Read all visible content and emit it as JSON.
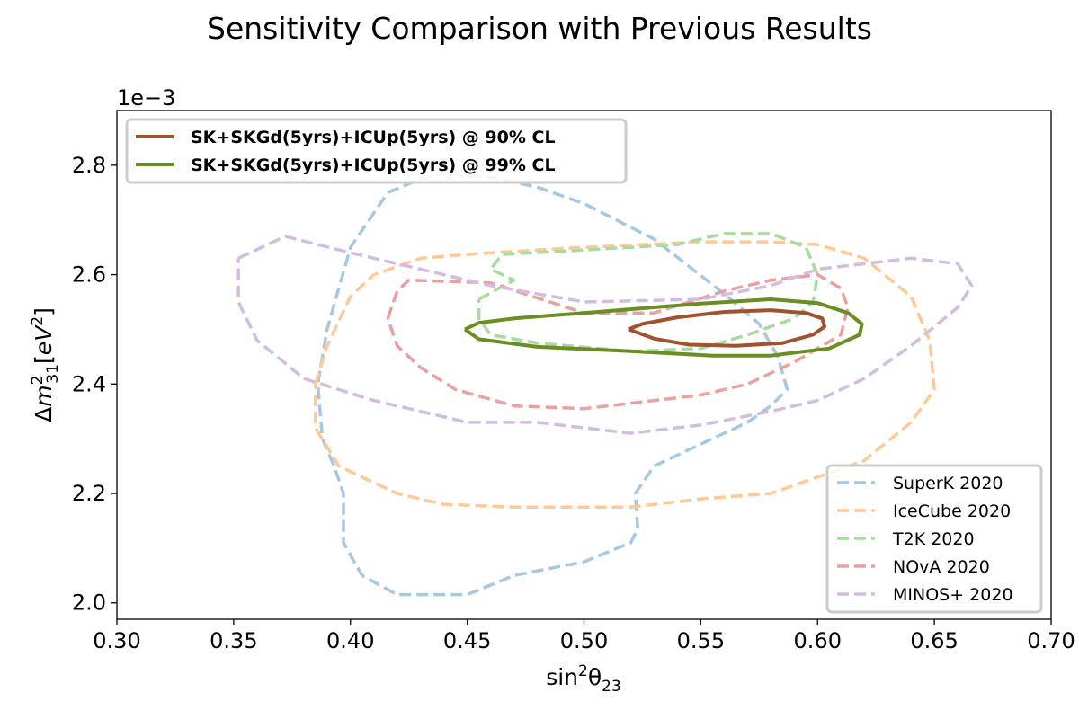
{
  "chart_data": {
    "type": "line",
    "title": "Sensitivity Comparison with Previous Results",
    "xlabel": "sin²θ₂₃",
    "ylabel": "Δm²₃₁[eV²]",
    "y_offset_text": "1e−3",
    "xlim": [
      0.3,
      0.7
    ],
    "ylim": [
      1.97,
      2.9
    ],
    "x_ticks": [
      "0.30",
      "0.35",
      "0.40",
      "0.45",
      "0.50",
      "0.55",
      "0.60",
      "0.65",
      "0.70"
    ],
    "y_ticks": [
      "2.0",
      "2.2",
      "2.4",
      "2.6",
      "2.8"
    ],
    "grid": false,
    "legend_main": "top-left",
    "legend_previous": "bottom-right",
    "series": [
      {
        "name": "SK+SKGd(5yrs)+ICUp(5yrs) @ 90% CL",
        "color": "#a0522d",
        "style": "solid",
        "points": [
          [
            0.519,
            2.5
          ],
          [
            0.525,
            2.51
          ],
          [
            0.54,
            2.522
          ],
          [
            0.56,
            2.532
          ],
          [
            0.58,
            2.535
          ],
          [
            0.595,
            2.53
          ],
          [
            0.602,
            2.52
          ],
          [
            0.603,
            2.505
          ],
          [
            0.598,
            2.49
          ],
          [
            0.585,
            2.475
          ],
          [
            0.565,
            2.47
          ],
          [
            0.545,
            2.472
          ],
          [
            0.53,
            2.483
          ],
          [
            0.519,
            2.5
          ]
        ]
      },
      {
        "name": "SK+SKGd(5yrs)+ICUp(5yrs) @ 99% CL",
        "color": "#6b8e23",
        "style": "solid",
        "points": [
          [
            0.449,
            2.5
          ],
          [
            0.455,
            2.512
          ],
          [
            0.47,
            2.52
          ],
          [
            0.5,
            2.53
          ],
          [
            0.55,
            2.547
          ],
          [
            0.58,
            2.555
          ],
          [
            0.6,
            2.548
          ],
          [
            0.613,
            2.53
          ],
          [
            0.619,
            2.51
          ],
          [
            0.618,
            2.49
          ],
          [
            0.605,
            2.465
          ],
          [
            0.58,
            2.452
          ],
          [
            0.555,
            2.452
          ],
          [
            0.52,
            2.46
          ],
          [
            0.48,
            2.468
          ],
          [
            0.455,
            2.482
          ],
          [
            0.449,
            2.5
          ]
        ]
      },
      {
        "name": "SuperK 2020",
        "color": "#a6c8e0",
        "style": "dashed",
        "points": [
          [
            0.416,
            2.75
          ],
          [
            0.43,
            2.775
          ],
          [
            0.44,
            2.785
          ],
          [
            0.46,
            2.778
          ],
          [
            0.48,
            2.76
          ],
          [
            0.5,
            2.73
          ],
          [
            0.53,
            2.665
          ],
          [
            0.56,
            2.565
          ],
          [
            0.575,
            2.51
          ],
          [
            0.583,
            2.45
          ],
          [
            0.587,
            2.39
          ],
          [
            0.58,
            2.36
          ],
          [
            0.57,
            2.33
          ],
          [
            0.55,
            2.29
          ],
          [
            0.53,
            2.25
          ],
          [
            0.522,
            2.2
          ],
          [
            0.523,
            2.135
          ],
          [
            0.52,
            2.11
          ],
          [
            0.5,
            2.075
          ],
          [
            0.47,
            2.05
          ],
          [
            0.45,
            2.015
          ],
          [
            0.42,
            2.015
          ],
          [
            0.405,
            2.05
          ],
          [
            0.397,
            2.11
          ],
          [
            0.397,
            2.2
          ],
          [
            0.393,
            2.25
          ],
          [
            0.388,
            2.3
          ],
          [
            0.386,
            2.4
          ],
          [
            0.39,
            2.5
          ],
          [
            0.4,
            2.65
          ],
          [
            0.416,
            2.75
          ]
        ]
      },
      {
        "name": "IceCube 2020",
        "color": "#ffc996",
        "style": "dashed",
        "points": [
          [
            0.385,
            2.4
          ],
          [
            0.39,
            2.47
          ],
          [
            0.4,
            2.56
          ],
          [
            0.41,
            2.6
          ],
          [
            0.43,
            2.63
          ],
          [
            0.46,
            2.64
          ],
          [
            0.5,
            2.65
          ],
          [
            0.55,
            2.66
          ],
          [
            0.58,
            2.66
          ],
          [
            0.6,
            2.655
          ],
          [
            0.62,
            2.63
          ],
          [
            0.64,
            2.56
          ],
          [
            0.648,
            2.48
          ],
          [
            0.65,
            2.39
          ],
          [
            0.64,
            2.33
          ],
          [
            0.62,
            2.26
          ],
          [
            0.58,
            2.2
          ],
          [
            0.55,
            2.19
          ],
          [
            0.52,
            2.175
          ],
          [
            0.47,
            2.175
          ],
          [
            0.44,
            2.18
          ],
          [
            0.42,
            2.2
          ],
          [
            0.395,
            2.25
          ],
          [
            0.385,
            2.32
          ],
          [
            0.385,
            2.4
          ]
        ]
      },
      {
        "name": "T2K 2020",
        "color": "#a8dba0",
        "style": "dashed",
        "points": [
          [
            0.455,
            2.555
          ],
          [
            0.47,
            2.59
          ],
          [
            0.46,
            2.61
          ],
          [
            0.465,
            2.637
          ],
          [
            0.5,
            2.645
          ],
          [
            0.54,
            2.655
          ],
          [
            0.56,
            2.675
          ],
          [
            0.58,
            2.675
          ],
          [
            0.595,
            2.65
          ],
          [
            0.6,
            2.6
          ],
          [
            0.598,
            2.55
          ],
          [
            0.59,
            2.52
          ],
          [
            0.57,
            2.49
          ],
          [
            0.55,
            2.465
          ],
          [
            0.52,
            2.46
          ],
          [
            0.48,
            2.475
          ],
          [
            0.46,
            2.49
          ],
          [
            0.455,
            2.52
          ],
          [
            0.455,
            2.555
          ]
        ]
      },
      {
        "name": "NOvA 2020",
        "color": "#eba0a0",
        "style": "dashed",
        "points": [
          [
            0.416,
            2.52
          ],
          [
            0.42,
            2.57
          ],
          [
            0.425,
            2.59
          ],
          [
            0.46,
            2.585
          ],
          [
            0.5,
            2.53
          ],
          [
            0.53,
            2.53
          ],
          [
            0.56,
            2.57
          ],
          [
            0.58,
            2.59
          ],
          [
            0.6,
            2.6
          ],
          [
            0.61,
            2.575
          ],
          [
            0.613,
            2.54
          ],
          [
            0.61,
            2.49
          ],
          [
            0.59,
            2.44
          ],
          [
            0.57,
            2.4
          ],
          [
            0.55,
            2.38
          ],
          [
            0.5,
            2.355
          ],
          [
            0.47,
            2.36
          ],
          [
            0.445,
            2.39
          ],
          [
            0.43,
            2.43
          ],
          [
            0.42,
            2.47
          ],
          [
            0.416,
            2.52
          ]
        ]
      },
      {
        "name": "MINOS+ 2020",
        "color": "#d2bde0",
        "style": "dashed",
        "points": [
          [
            0.352,
            2.63
          ],
          [
            0.372,
            2.67
          ],
          [
            0.4,
            2.64
          ],
          [
            0.42,
            2.62
          ],
          [
            0.44,
            2.6
          ],
          [
            0.46,
            2.58
          ],
          [
            0.5,
            2.55
          ],
          [
            0.55,
            2.555
          ],
          [
            0.58,
            2.58
          ],
          [
            0.6,
            2.61
          ],
          [
            0.64,
            2.63
          ],
          [
            0.66,
            2.62
          ],
          [
            0.666,
            2.58
          ],
          [
            0.66,
            2.54
          ],
          [
            0.64,
            2.47
          ],
          [
            0.62,
            2.41
          ],
          [
            0.6,
            2.37
          ],
          [
            0.58,
            2.35
          ],
          [
            0.55,
            2.325
          ],
          [
            0.52,
            2.31
          ],
          [
            0.5,
            2.32
          ],
          [
            0.48,
            2.33
          ],
          [
            0.45,
            2.33
          ],
          [
            0.42,
            2.36
          ],
          [
            0.41,
            2.37
          ],
          [
            0.38,
            2.41
          ],
          [
            0.36,
            2.48
          ],
          [
            0.352,
            2.55
          ],
          [
            0.352,
            2.63
          ]
        ]
      }
    ]
  }
}
